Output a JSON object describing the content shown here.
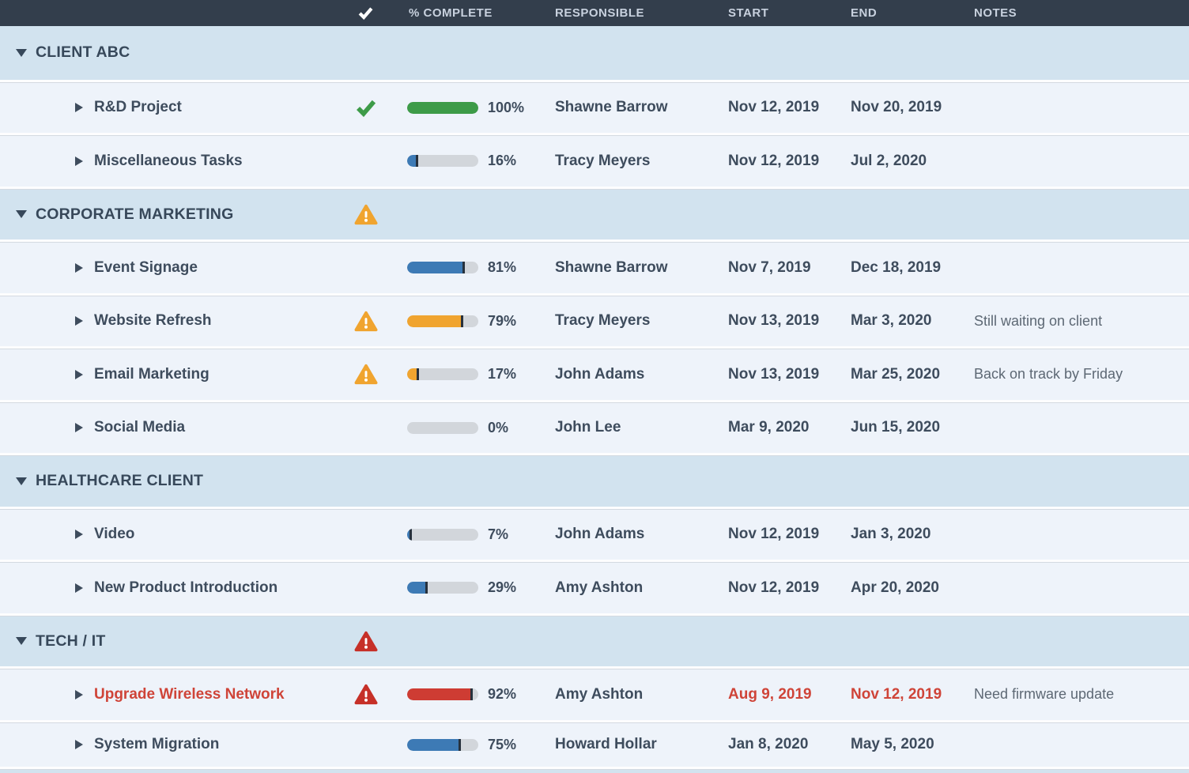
{
  "header": {
    "check_icon": "check",
    "columns": [
      {
        "label": "% COMPLETE"
      },
      {
        "label": "RESPONSIBLE"
      },
      {
        "label": "START"
      },
      {
        "label": "END"
      },
      {
        "label": "NOTES"
      }
    ]
  },
  "colors": {
    "green": "#3d9b48",
    "blue": "#3d7ab5",
    "orange": "#f0a42f",
    "red": "#ce3c33",
    "red_icon": "#c63028",
    "red_text": "#cf4438",
    "header_bg": "#333e4c",
    "group_row_bg": "#d2e3ef",
    "task_row_bg": "#eef3fa"
  },
  "groups": [
    {
      "name": "CLIENT ABC",
      "status_icon": null,
      "tasks": [
        {
          "name": "R&D Project",
          "status_icon": "check-green",
          "percent": 100,
          "percent_label": "100%",
          "bar_color": "green",
          "responsible": "Shawne Barrow",
          "start": "Nov 12, 2019",
          "end": "Nov 20, 2019",
          "notes": "",
          "alert": false,
          "cut": false
        },
        {
          "name": "Miscellaneous Tasks",
          "status_icon": null,
          "percent": 16,
          "percent_label": "16%",
          "bar_color": "blue",
          "responsible": "Tracy Meyers",
          "start": "Nov 12, 2019",
          "end": "Jul 2, 2020",
          "notes": "",
          "alert": false,
          "cut": false
        }
      ]
    },
    {
      "name": "CORPORATE MARKETING",
      "status_icon": "warning-yellow",
      "tasks": [
        {
          "name": "Event Signage",
          "status_icon": null,
          "percent": 81,
          "percent_label": "81%",
          "bar_color": "blue",
          "responsible": "Shawne Barrow",
          "start": "Nov 7, 2019",
          "end": "Dec 18, 2019",
          "notes": "",
          "alert": false,
          "cut": false
        },
        {
          "name": "Website Refresh",
          "status_icon": "warning-yellow",
          "percent": 79,
          "percent_label": "79%",
          "bar_color": "orange",
          "responsible": "Tracy Meyers",
          "start": "Nov 13, 2019",
          "end": "Mar 3, 2020",
          "notes": "Still waiting on client",
          "alert": false,
          "cut": false
        },
        {
          "name": "Email Marketing",
          "status_icon": "warning-yellow",
          "percent": 17,
          "percent_label": "17%",
          "bar_color": "orange",
          "responsible": "John Adams",
          "start": "Nov 13, 2019",
          "end": "Mar 25, 2020",
          "notes": "Back on track by Friday",
          "alert": false,
          "cut": false
        },
        {
          "name": "Social Media",
          "status_icon": null,
          "percent": 0,
          "percent_label": "0%",
          "bar_color": "none",
          "responsible": "John Lee",
          "start": "Mar 9, 2020",
          "end": "Jun 15, 2020",
          "notes": "",
          "alert": false,
          "cut": false
        }
      ]
    },
    {
      "name": "HEALTHCARE CLIENT",
      "status_icon": null,
      "tasks": [
        {
          "name": "Video",
          "status_icon": null,
          "percent": 7,
          "percent_label": "7%",
          "bar_color": "blue",
          "responsible": "John Adams",
          "start": "Nov 12, 2019",
          "end": "Jan 3, 2020",
          "notes": "",
          "alert": false,
          "cut": false
        },
        {
          "name": "New Product Introduction",
          "status_icon": null,
          "percent": 29,
          "percent_label": "29%",
          "bar_color": "blue",
          "responsible": "Amy Ashton",
          "start": "Nov 12, 2019",
          "end": "Apr 20, 2020",
          "notes": "",
          "alert": false,
          "cut": false
        }
      ]
    },
    {
      "name": "TECH / IT",
      "status_icon": "warning-red",
      "tasks": [
        {
          "name": "Upgrade Wireless Network",
          "status_icon": "warning-red",
          "percent": 92,
          "percent_label": "92%",
          "bar_color": "red",
          "responsible": "Amy Ashton",
          "start": "Aug 9, 2019",
          "end": "Nov 12, 2019",
          "notes": "Need firmware update",
          "alert": true,
          "cut": false
        },
        {
          "name": "System Migration",
          "status_icon": null,
          "percent": 75,
          "percent_label": "75%",
          "bar_color": "blue",
          "responsible": "Howard Hollar",
          "start": "Jan 8, 2020",
          "end": "May 5, 2020",
          "notes": "",
          "alert": false,
          "cut": true
        }
      ]
    }
  ]
}
